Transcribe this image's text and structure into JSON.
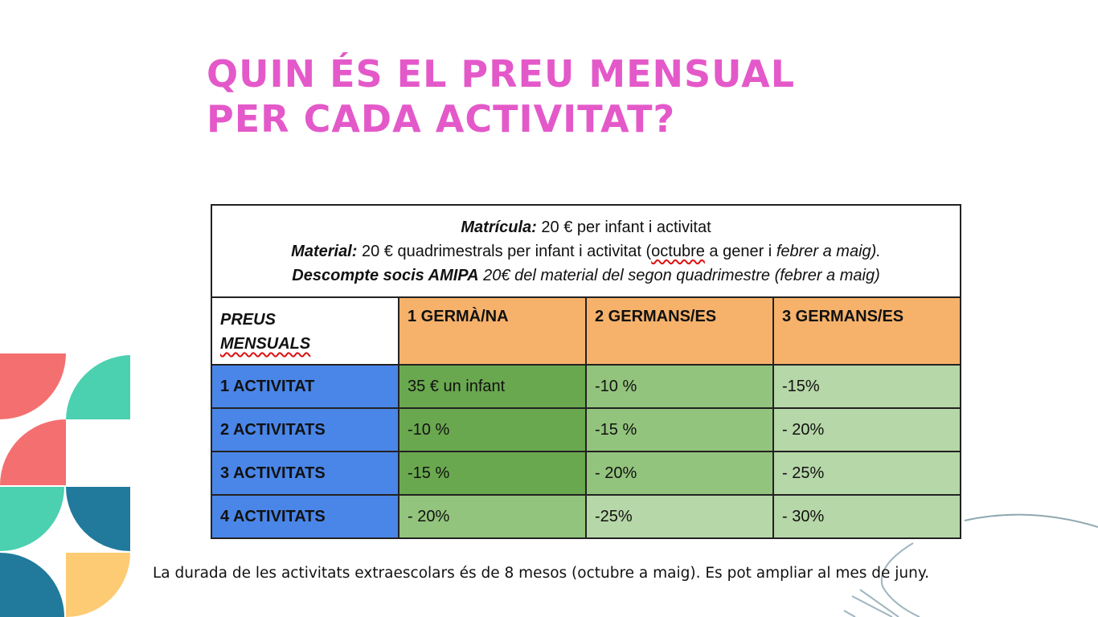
{
  "title": {
    "line1": "QUIN ÉS EL PREU MENSUAL",
    "line2": "PER CADA ACTIVITAT?"
  },
  "info": {
    "matricula_label": "Matrícula:",
    "matricula_text": " 20 € per infant i activitat",
    "material_label": "Material:",
    "material_text_a": " 20 € quadrimestrals per infant i activitat (",
    "material_text_octubre": "octubre",
    "material_text_b": " a gener i ",
    "material_text_c": "febrer a maig).",
    "descompte_label": "Descompte socis AMIPA",
    "descompte_text": "  20€ del material del segon quadrimestre (febrer a maig)"
  },
  "table": {
    "corner_line1": "PREUS",
    "corner_line2": "MENSUALS",
    "headers": [
      "1 GERMÀ/NA",
      "2 GERMANS/ES",
      "3 GERMANS/ES"
    ],
    "rows": [
      {
        "label": "1 ACTIVITAT",
        "cells": [
          "35 €  un infant",
          "-10 %",
          "-15%"
        ]
      },
      {
        "label": "2 ACTIVITATS",
        "cells": [
          "-10 %",
          "-15 %",
          "- 20%"
        ]
      },
      {
        "label": "3 ACTIVITATS",
        "cells": [
          "-15 %",
          "- 20%",
          "- 25%"
        ]
      },
      {
        "label": "4 ACTIVITATS",
        "cells": [
          "- 20%",
          "-25%",
          "- 30%"
        ]
      }
    ]
  },
  "footer": "La durada de les activitats extraescolars és de 8 mesos (octubre a maig). Es pot ampliar al mes de juny.",
  "colors": {
    "title": "#e459c9",
    "header_orange": "#f6b26b",
    "row_label_blue": "#4a86e8",
    "green_dark": "#6aa84f",
    "green_mid": "#93c47d",
    "green_light": "#b6d7a8",
    "deco_coral": "#f46f6f",
    "deco_teal": "#4bd0b0",
    "deco_navy": "#217a9c",
    "deco_yellow": "#fdcb74"
  }
}
